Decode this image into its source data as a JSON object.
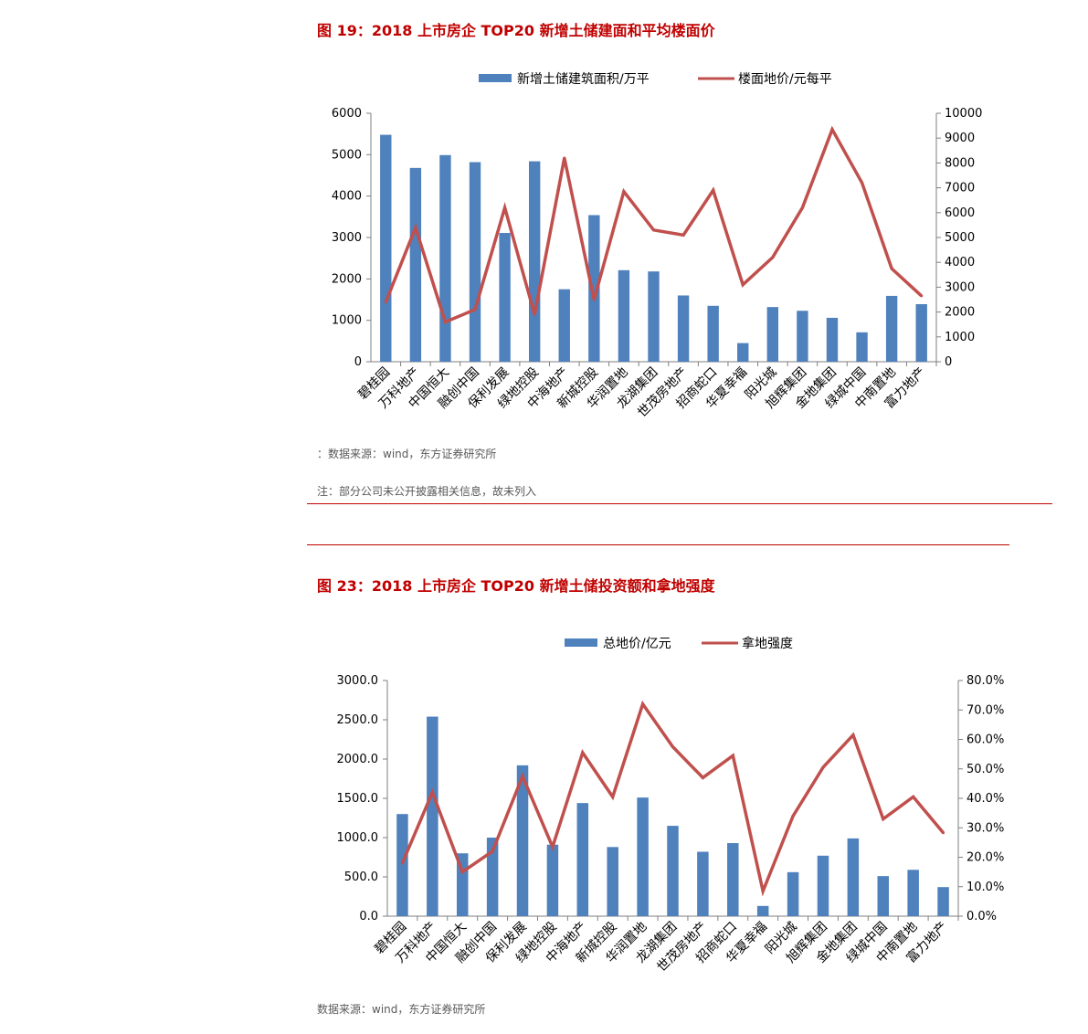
{
  "figure1": {
    "title": "图 19：2018 上市房企 TOP20 新增土储建面和平均楼面价",
    "source": "：数据来源：wind，东方证券研究所",
    "note": "注：部分公司未公开披露相关信息，故未列入"
  },
  "figure2": {
    "title": "图 23：2018 上市房企 TOP20 新增土储投资额和拿地强度",
    "source": "数据来源：wind，东方证券研究所"
  },
  "colors": {
    "bar": "#4f81bd",
    "line": "#c0504d",
    "title": "#c00000",
    "rule": "#c00000"
  },
  "chart_data": [
    {
      "type": "bar",
      "categories": [
        "碧桂园",
        "万科地产",
        "中国恒大",
        "融创中国",
        "保利发展",
        "绿地控股",
        "中海地产",
        "新城控股",
        "华润置地",
        "龙湖集团",
        "世茂房地产",
        "招商蛇口",
        "华夏幸福",
        "阳光城",
        "旭辉集团",
        "金地集团",
        "绿城中国",
        "中南置地",
        "富力地产"
      ],
      "series": [
        {
          "name": "新增土储建筑面积/万平",
          "type": "bar",
          "axis": "left",
          "values": [
            5480,
            4680,
            4990,
            4820,
            3110,
            4840,
            1750,
            3540,
            2210,
            2180,
            1600,
            1350,
            450,
            1320,
            1230,
            1060,
            710,
            1590,
            1390
          ]
        },
        {
          "name": "楼面地价/元每平",
          "type": "line",
          "axis": "right",
          "values": [
            2400,
            5400,
            1600,
            2100,
            6200,
            1900,
            8200,
            2500,
            6850,
            5300,
            5100,
            6900,
            3100,
            4200,
            6200,
            9350,
            7200,
            3750,
            2650
          ]
        }
      ],
      "yleft": {
        "min": 0,
        "max": 6000,
        "step": 1000,
        "decimals": 0,
        "suffix": ""
      },
      "yright": {
        "min": 0,
        "max": 10000,
        "step": 1000,
        "decimals": 0,
        "suffix": ""
      },
      "legend": "top"
    },
    {
      "type": "bar",
      "categories": [
        "碧桂园",
        "万科地产",
        "中国恒大",
        "融创中国",
        "保利发展",
        "绿地控股",
        "中海地产",
        "新城控股",
        "华润置地",
        "龙湖集团",
        "世茂房地产",
        "招商蛇口",
        "华夏幸福",
        "阳光城",
        "旭辉集团",
        "金地集团",
        "绿城中国",
        "中南置地",
        "富力地产"
      ],
      "series": [
        {
          "name": "总地价/亿元",
          "type": "bar",
          "axis": "left",
          "values": [
            1300,
            2540,
            800,
            1000,
            1920,
            910,
            1440,
            880,
            1510,
            1150,
            820,
            930,
            130,
            560,
            770,
            990,
            510,
            590,
            370
          ]
        },
        {
          "name": "拿地强度",
          "type": "line",
          "axis": "right",
          "values": [
            0.18,
            0.42,
            0.15,
            0.22,
            0.475,
            0.235,
            0.555,
            0.405,
            0.72,
            0.575,
            0.47,
            0.545,
            0.085,
            0.34,
            0.505,
            0.615,
            0.33,
            0.405,
            0.283
          ]
        }
      ],
      "yleft": {
        "min": 0,
        "max": 3000,
        "step": 500,
        "decimals": 1,
        "suffix": ""
      },
      "yright": {
        "min": 0,
        "max": 0.8,
        "step": 0.1,
        "decimals": 1,
        "percent": true
      },
      "legend": "top"
    }
  ]
}
